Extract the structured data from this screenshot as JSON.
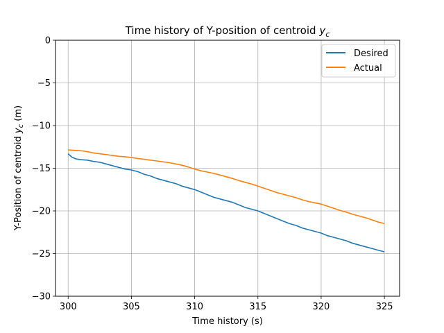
{
  "chart_data": {
    "type": "line",
    "title_main": "Time history of Y-position of centroid ",
    "title_var": "y",
    "title_sub": "c",
    "xlabel": "Time history (s)",
    "ylabel_main": "Y-Position of centroid ",
    "ylabel_var": "y",
    "ylabel_sub": "c",
    "ylabel_unit": " (m)",
    "xlim": [
      299,
      326.2
    ],
    "ylim": [
      -30,
      0
    ],
    "xticks": [
      300,
      305,
      310,
      315,
      320,
      325
    ],
    "yticks": [
      0,
      -5,
      -10,
      -15,
      -20,
      -25,
      -30
    ],
    "xtick_labels": [
      "300",
      "305",
      "310",
      "315",
      "320",
      "325"
    ],
    "ytick_labels": [
      "0",
      "−5",
      "−10",
      "−15",
      "−20",
      "−25",
      "−30"
    ],
    "grid": true,
    "legend_position": "top-right",
    "series": [
      {
        "name": "Desired",
        "color": "#1f77b4",
        "x": [
          300,
          300.3,
          300.6,
          301,
          301.5,
          302,
          302.5,
          303,
          303.5,
          304,
          304.5,
          305,
          305.5,
          306,
          306.5,
          307,
          307.5,
          308,
          308.5,
          309,
          309.5,
          310,
          310.5,
          311,
          311.5,
          312,
          312.5,
          313,
          313.5,
          314,
          314.5,
          315,
          315.5,
          316,
          316.5,
          317,
          317.5,
          318,
          318.5,
          319,
          319.5,
          320,
          320.5,
          321,
          321.5,
          322,
          322.5,
          323,
          323.5,
          324,
          324.5,
          325
        ],
        "y": [
          -13.3,
          -13.7,
          -13.9,
          -14.0,
          -14.05,
          -14.2,
          -14.3,
          -14.5,
          -14.7,
          -14.9,
          -15.1,
          -15.2,
          -15.4,
          -15.7,
          -15.9,
          -16.2,
          -16.4,
          -16.6,
          -16.8,
          -17.1,
          -17.3,
          -17.5,
          -17.8,
          -18.1,
          -18.4,
          -18.6,
          -18.8,
          -19.0,
          -19.3,
          -19.6,
          -19.8,
          -20.0,
          -20.3,
          -20.6,
          -20.9,
          -21.2,
          -21.5,
          -21.7,
          -22.0,
          -22.2,
          -22.4,
          -22.6,
          -22.9,
          -23.1,
          -23.3,
          -23.5,
          -23.8,
          -24.0,
          -24.2,
          -24.4,
          -24.6,
          -24.8
        ]
      },
      {
        "name": "Actual",
        "color": "#ff7f0e",
        "x": [
          300,
          300.5,
          301,
          301.5,
          302,
          302.5,
          303,
          303.5,
          304,
          304.5,
          305,
          305.5,
          306,
          306.5,
          307,
          307.5,
          308,
          308.5,
          309,
          309.5,
          310,
          310.5,
          311,
          311.5,
          312,
          312.5,
          313,
          313.5,
          314,
          314.5,
          315,
          315.5,
          316,
          316.5,
          317,
          317.5,
          318,
          318.5,
          319,
          319.5,
          320,
          320.5,
          321,
          321.5,
          322,
          322.5,
          323,
          323.5,
          324,
          324.5,
          325
        ],
        "y": [
          -12.85,
          -12.9,
          -12.95,
          -13.05,
          -13.2,
          -13.3,
          -13.4,
          -13.5,
          -13.6,
          -13.65,
          -13.75,
          -13.85,
          -13.95,
          -14.05,
          -14.15,
          -14.25,
          -14.35,
          -14.5,
          -14.65,
          -14.85,
          -15.1,
          -15.3,
          -15.45,
          -15.6,
          -15.8,
          -16.0,
          -16.2,
          -16.45,
          -16.65,
          -16.85,
          -17.1,
          -17.35,
          -17.6,
          -17.85,
          -18.05,
          -18.25,
          -18.45,
          -18.7,
          -18.9,
          -19.05,
          -19.2,
          -19.45,
          -19.7,
          -19.95,
          -20.15,
          -20.4,
          -20.6,
          -20.8,
          -21.05,
          -21.3,
          -21.5
        ]
      }
    ]
  }
}
